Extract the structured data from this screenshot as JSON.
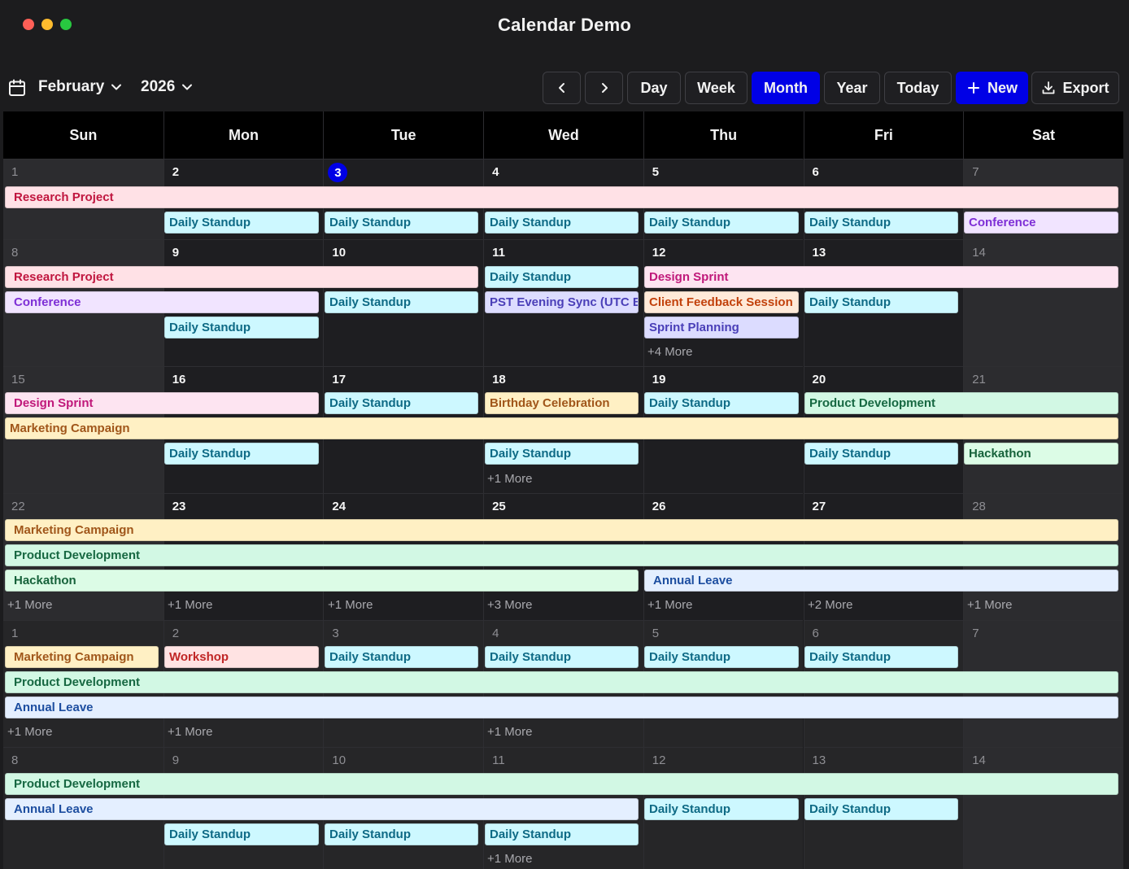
{
  "window": {
    "title": "Calendar Demo"
  },
  "toolbar": {
    "month": "February",
    "year": "2026",
    "prev_label": "‹",
    "next_label": "›",
    "view_day": "Day",
    "view_week": "Week",
    "view_month": "Month",
    "view_year": "Year",
    "today": "Today",
    "new": "New",
    "export": "Export",
    "active_view": "Month",
    "accent_color": "#0000e6"
  },
  "weekdays": [
    "Sun",
    "Mon",
    "Tue",
    "Wed",
    "Thu",
    "Fri",
    "Sat"
  ],
  "weeks": [
    {
      "days": [
        "1",
        "2",
        "3",
        "4",
        "5",
        "6",
        "7"
      ],
      "events": {
        "research": "Research Project",
        "standup_mon": "Daily Standup",
        "standup_tue": "Daily Standup",
        "standup_wed": "Daily Standup",
        "standup_thu": "Daily Standup",
        "standup_fri": "Daily Standup",
        "conference": "Conference"
      }
    },
    {
      "days": [
        "8",
        "9",
        "10",
        "11",
        "12",
        "13",
        "14"
      ],
      "events": {
        "research": "Research Project",
        "standup_wed": "Daily Standup",
        "design_sprint": "Design Sprint",
        "conference": "Conference",
        "standup_tue": "Daily Standup",
        "pst_sync": "PST Evening Sync (UTC Bangkok)",
        "client_feedback": "Client Feedback Session",
        "standup_fri": "Daily Standup",
        "standup_mon": "Daily Standup",
        "sprint_planning": "Sprint Planning",
        "more_thu": "+4 More"
      }
    },
    {
      "days": [
        "15",
        "16",
        "17",
        "18",
        "19",
        "20",
        "21"
      ],
      "events": {
        "design_sprint": "Design Sprint",
        "standup_tue": "Daily Standup",
        "birthday": "Birthday Celebration",
        "standup_thu": "Daily Standup",
        "product_dev": "Product Development",
        "marketing": "Marketing Campaign",
        "standup_mon": "Daily Standup",
        "standup_wed": "Daily Standup",
        "standup_fri": "Daily Standup",
        "hackathon": "Hackathon",
        "more_wed": "+1 More"
      }
    },
    {
      "days": [
        "22",
        "23",
        "24",
        "25",
        "26",
        "27",
        "28"
      ],
      "events": {
        "marketing": "Marketing Campaign",
        "product_dev": "Product Development",
        "hackathon": "Hackathon",
        "annual_leave": "Annual Leave",
        "more": [
          "+1 More",
          "+1 More",
          "+1 More",
          "+3 More",
          "+1 More",
          "+2 More",
          "+1 More"
        ]
      }
    },
    {
      "days": [
        "1",
        "2",
        "3",
        "4",
        "5",
        "6",
        "7"
      ],
      "events": {
        "marketing": "Marketing Campaign",
        "workshop": "Workshop",
        "standup_tue": "Daily Standup",
        "standup_wed": "Daily Standup",
        "standup_thu": "Daily Standup",
        "standup_fri": "Daily Standup",
        "product_dev": "Product Development",
        "annual_leave": "Annual Leave",
        "more_sun": "+1 More",
        "more_mon": "+1 More",
        "more_wed": "+1 More"
      }
    },
    {
      "days": [
        "8",
        "9",
        "10",
        "11",
        "12",
        "13",
        "14"
      ],
      "events": {
        "product_dev": "Product Development",
        "annual_leave": "Annual Leave",
        "standup_thu": "Daily Standup",
        "standup_fri": "Daily Standup",
        "standup_mon": "Daily Standup",
        "standup_tue": "Daily Standup",
        "standup_wed": "Daily Standup",
        "more_wed": "+1 More"
      }
    }
  ],
  "today_date": "3"
}
